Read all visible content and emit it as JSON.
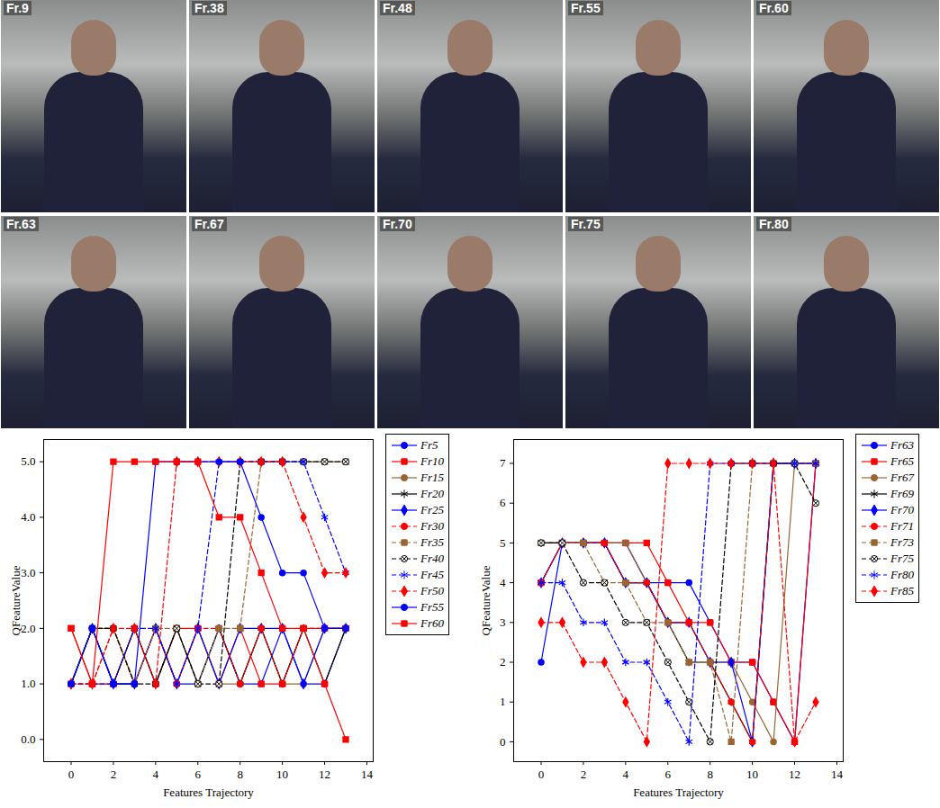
{
  "figure": {
    "frames": [
      "Fr.9",
      "Fr.38",
      "Fr.48",
      "Fr.55",
      "Fr.60",
      "Fr.63",
      "Fr.67",
      "Fr.70",
      "Fr.75",
      "Fr.80"
    ]
  },
  "chart_data": [
    {
      "type": "line",
      "xlabel": "Features Trajectory",
      "ylabel": "QFeatureValue",
      "x": [
        0,
        1,
        2,
        3,
        4,
        5,
        6,
        7,
        8,
        9,
        10,
        11,
        12,
        13
      ],
      "xlim": [
        -1.3,
        14.3
      ],
      "xticks": [
        0,
        2,
        4,
        6,
        8,
        10,
        12,
        14
      ],
      "ylim": [
        -0.4,
        5.4
      ],
      "yticks": [
        0,
        1,
        2,
        3,
        4,
        5
      ],
      "grid": false,
      "legend": "right",
      "series": [
        {
          "name": "Fr5",
          "color": "#0000ff",
          "marker": "circle",
          "line_style": "solid",
          "values": [
            1,
            2,
            1,
            1,
            2,
            1,
            1,
            2,
            1,
            1,
            2,
            1,
            1,
            2
          ]
        },
        {
          "name": "Fr10",
          "color": "#ff0000",
          "marker": "square",
          "line_style": "solid",
          "values": [
            2,
            1,
            1,
            2,
            1,
            2,
            2,
            1,
            2,
            1,
            1,
            2,
            2,
            2
          ]
        },
        {
          "name": "Fr15",
          "color": "#996633",
          "marker": "circle",
          "line_style": "solid",
          "values": [
            1,
            2,
            2,
            1,
            2,
            1,
            2,
            1,
            1,
            2,
            1,
            1,
            2,
            2
          ]
        },
        {
          "name": "Fr20",
          "color": "#000000",
          "marker": "star",
          "line_style": "solid",
          "values": [
            1,
            2,
            1,
            2,
            1,
            2,
            1,
            2,
            1,
            2,
            1,
            2,
            1,
            2
          ]
        },
        {
          "name": "Fr25",
          "color": "#0000ff",
          "marker": "diamond",
          "line_style": "solid",
          "values": [
            1,
            2,
            1,
            1,
            2,
            1,
            2,
            1,
            2,
            2,
            2,
            1,
            2,
            2
          ]
        },
        {
          "name": "Fr30",
          "color": "#ff0000",
          "marker": "circle",
          "line_style": "dashed",
          "values": [
            1,
            1,
            2,
            1,
            2,
            1,
            2,
            2,
            1,
            2,
            1,
            2,
            2,
            2
          ]
        },
        {
          "name": "Fr35",
          "color": "#996633",
          "marker": "square",
          "line_style": "dashed",
          "values": [
            1,
            2,
            2,
            1,
            2,
            2,
            1,
            2,
            2,
            5,
            5,
            5,
            5,
            5
          ]
        },
        {
          "name": "Fr40",
          "color": "#000000",
          "marker": "otimes",
          "line_style": "dashed",
          "values": [
            1,
            2,
            2,
            1,
            1,
            2,
            1,
            1,
            5,
            5,
            5,
            5,
            5,
            5
          ]
        },
        {
          "name": "Fr45",
          "color": "#0000ff",
          "marker": "star",
          "line_style": "dashed",
          "values": [
            1,
            1,
            1,
            2,
            2,
            1,
            2,
            5,
            5,
            5,
            5,
            5,
            4,
            3
          ]
        },
        {
          "name": "Fr50",
          "color": "#ff0000",
          "marker": "diamond",
          "line_style": "dashed",
          "values": [
            1,
            1,
            2,
            2,
            1,
            5,
            5,
            5,
            5,
            5,
            5,
            4,
            3,
            3
          ]
        },
        {
          "name": "Fr55",
          "color": "#0000ff",
          "marker": "circle",
          "line_style": "solid",
          "values": [
            1,
            2,
            1,
            1,
            5,
            5,
            5,
            5,
            5,
            4,
            3,
            3,
            2,
            2
          ]
        },
        {
          "name": "Fr60",
          "color": "#ff0000",
          "marker": "square",
          "line_style": "solid",
          "values": [
            2,
            1,
            5,
            5,
            5,
            5,
            5,
            4,
            4,
            3,
            2,
            2,
            1,
            0
          ]
        }
      ]
    },
    {
      "type": "line",
      "xlabel": "Features Trajectory",
      "ylabel": "QFeatureValue",
      "x": [
        0,
        1,
        2,
        3,
        4,
        5,
        6,
        7,
        8,
        9,
        10,
        11,
        12,
        13
      ],
      "xlim": [
        -1.3,
        14.3
      ],
      "xticks": [
        0,
        2,
        4,
        6,
        8,
        10,
        12,
        14
      ],
      "ylim": [
        -0.5,
        7.6
      ],
      "yticks": [
        0,
        1,
        2,
        3,
        4,
        5,
        6,
        7
      ],
      "grid": false,
      "legend": "right",
      "series": [
        {
          "name": "Fr63",
          "color": "#0000ff",
          "marker": "circle",
          "line_style": "solid",
          "values": [
            2,
            5,
            5,
            5,
            5,
            4,
            4,
            4,
            3,
            2,
            2,
            1,
            0,
            7
          ]
        },
        {
          "name": "Fr65",
          "color": "#ff0000",
          "marker": "square",
          "line_style": "solid",
          "values": [
            4,
            5,
            5,
            5,
            5,
            5,
            4,
            3,
            3,
            2,
            2,
            1,
            0,
            7
          ]
        },
        {
          "name": "Fr67",
          "color": "#996633",
          "marker": "circle",
          "line_style": "solid",
          "values": [
            5,
            5,
            5,
            5,
            5,
            4,
            3,
            3,
            2,
            2,
            1,
            0,
            7,
            7
          ]
        },
        {
          "name": "Fr69",
          "color": "#000000",
          "marker": "star",
          "line_style": "solid",
          "values": [
            5,
            5,
            5,
            5,
            4,
            4,
            3,
            2,
            2,
            1,
            0,
            7,
            7,
            7
          ]
        },
        {
          "name": "Fr70",
          "color": "#0000ff",
          "marker": "diamond",
          "line_style": "solid",
          "values": [
            4,
            5,
            5,
            5,
            4,
            4,
            3,
            3,
            2,
            2,
            0,
            7,
            7,
            7
          ]
        },
        {
          "name": "Fr71",
          "color": "#ff0000",
          "marker": "circle",
          "line_style": "dashed",
          "values": [
            4,
            5,
            5,
            5,
            4,
            4,
            3,
            3,
            2,
            1,
            0,
            7,
            7,
            7
          ]
        },
        {
          "name": "Fr73",
          "color": "#996633",
          "marker": "square",
          "line_style": "dashed",
          "values": [
            5,
            5,
            5,
            4,
            4,
            3,
            3,
            2,
            2,
            0,
            7,
            7,
            7,
            7
          ]
        },
        {
          "name": "Fr75",
          "color": "#000000",
          "marker": "otimes",
          "line_style": "dashed",
          "values": [
            5,
            5,
            4,
            4,
            3,
            3,
            2,
            1,
            0,
            7,
            7,
            7,
            7,
            6
          ]
        },
        {
          "name": "Fr80",
          "color": "#0000ff",
          "marker": "star",
          "line_style": "dashed",
          "values": [
            4,
            4,
            3,
            3,
            2,
            2,
            1,
            0,
            7,
            7,
            7,
            7,
            7,
            7
          ]
        },
        {
          "name": "Fr85",
          "color": "#ff0000",
          "marker": "diamond",
          "line_style": "dashed",
          "values": [
            3,
            3,
            2,
            2,
            1,
            0,
            7,
            7,
            7,
            7,
            7,
            7,
            0,
            1
          ]
        }
      ]
    }
  ]
}
